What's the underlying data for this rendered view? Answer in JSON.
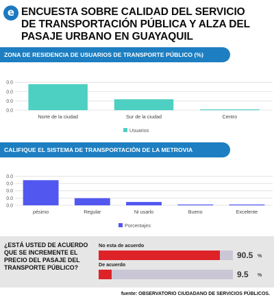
{
  "header": {
    "title_lines": [
      "ENCUESTA SOBRE CALIDAD DEL SERVICIO",
      "DE TRANSPORTACIÓN PÚBLICA Y ALZA DEL",
      "PASAJE URBANO EN GUAYAQUIL"
    ],
    "logo_letter": "e",
    "logo_icon": "brand-e-logo-icon",
    "accent_color": "#1d7fc1"
  },
  "chart_data": [
    {
      "type": "bar",
      "title": "ZONA DE RESIDENCIA DE USUARIOS DE TRANSPORTE PÚBLICO (%)",
      "categories": [
        "Norte de la ciudad",
        "Sur de la ciudad",
        "Centro"
      ],
      "series": [
        {
          "name": "Usuarios",
          "values": [
            62,
            26,
            2
          ],
          "color": "#4dd0c2"
        }
      ],
      "yticks": [
        "0.0",
        "0.0",
        "0.0",
        "0.0"
      ],
      "ylim": [
        0,
        80
      ],
      "grid": true,
      "legend": "bottom"
    },
    {
      "type": "bar",
      "title": "CALIFIQUE EL SISTEMA DE TRANSPORTACIÒN DE LA METROVIA",
      "categories": [
        "pésimo",
        "Regular",
        "Ni usarlo",
        "Bueno",
        "Excelente"
      ],
      "series": [
        {
          "name": "Porcentajes",
          "values": [
            60,
            17,
            8,
            2,
            2
          ],
          "color": "#5257f0"
        }
      ],
      "yticks": [
        "0.0",
        "0.0",
        "0.0",
        "0.0",
        "0.0"
      ],
      "ylim": [
        0,
        80
      ],
      "grid": true,
      "legend": "bottom"
    }
  ],
  "survey": {
    "question_lines": [
      "¿ESTÁ USTED DE ACUERDO",
      "QUE SE INCREMENTE EL",
      "PRECIO DEL PASAJE DEL",
      "TRANSPORTE PÚBLICO?"
    ],
    "options": [
      {
        "label": "No esta de acuerdo",
        "value": 90.5,
        "value_text": "90.5",
        "unit": "%"
      },
      {
        "label": "De acuerdo",
        "value": 9.5,
        "value_text": "9.5",
        "unit": "%"
      }
    ],
    "fill_color": "#dd2327",
    "track_color": "#cbc6d6"
  },
  "source": "fuente: OBSERVATORIO CIUDADANO DE SERVICIOS PÚBLICOS."
}
